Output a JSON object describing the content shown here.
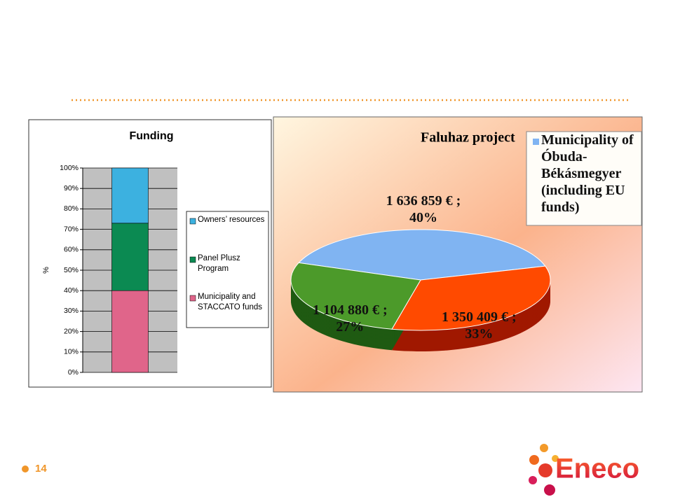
{
  "chart_data": [
    {
      "type": "stacked_bar",
      "title": "Funding",
      "y_label": "%",
      "categories": [
        null
      ],
      "series": [
        {
          "name": "Municipality and STACCATO funds",
          "color": "#e0658a",
          "values": [
            40
          ]
        },
        {
          "name": "Panel Plusz Program",
          "color": "#0b8a52",
          "values": [
            33
          ]
        },
        {
          "name": "Owners’ resources",
          "color": "#3cb1e0",
          "values": [
            27
          ]
        }
      ],
      "ylim": [
        0,
        100
      ],
      "yticks": [
        {
          "value": 0,
          "label": "0%"
        },
        {
          "value": 10,
          "label": "10%"
        },
        {
          "value": 20,
          "label": "20%"
        },
        {
          "value": 30,
          "label": "30%"
        },
        {
          "value": 40,
          "label": "40%"
        },
        {
          "value": 50,
          "label": "50%"
        },
        {
          "value": 60,
          "label": "60%"
        },
        {
          "value": 70,
          "label": "70%"
        },
        {
          "value": 80,
          "label": "80%"
        },
        {
          "value": 90,
          "label": "90%"
        },
        {
          "value": 100,
          "label": "100%"
        }
      ],
      "grid": true
    },
    {
      "type": "pie",
      "title": "Faluhaz project",
      "categories": [
        "Municipality of Óbuda-Békásmegyer (including EU funds)",
        null,
        null
      ],
      "values": [
        1636859,
        1350409,
        1104880
      ],
      "value_labels": [
        "1 636 859 € ; 40%",
        "1 350 409 € ; 33%",
        "1 104 880 € ; 27%"
      ],
      "colors": [
        "#80b4f2",
        "#ff4a00",
        "#4c9a2a"
      ],
      "side_colors": [
        "#3f5a78",
        "#a01800",
        "#1f5a12"
      ]
    }
  ],
  "slide": {
    "page_number": "14",
    "logo": "Eneco"
  }
}
